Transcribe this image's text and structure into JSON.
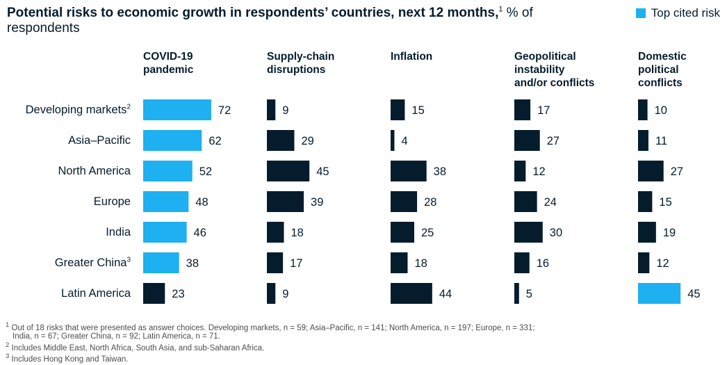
{
  "title": {
    "bold": "Potential risks to economic growth in respondents’ countries, next 12 months,",
    "bold_sup": "1",
    "light": " % of respondents"
  },
  "legend": {
    "label": "Top cited risk",
    "color": "#1eb0f0"
  },
  "colors": {
    "highlight": "#1eb0f0",
    "default": "#051c2c"
  },
  "chart_data": {
    "type": "bar",
    "orientation": "horizontal",
    "categories": [
      "Developing markets",
      "Asia–Pacific",
      "North America",
      "Europe",
      "India",
      "Greater China",
      "Latin America"
    ],
    "category_sups": [
      "2",
      "",
      "",
      "",
      "",
      "3",
      ""
    ],
    "series": [
      {
        "name": "COVID-19 pandemic",
        "values": [
          72,
          62,
          52,
          48,
          46,
          38,
          23
        ],
        "top_cited": [
          true,
          true,
          true,
          true,
          true,
          true,
          false
        ]
      },
      {
        "name": "Supply-chain disruptions",
        "values": [
          9,
          29,
          45,
          39,
          18,
          17,
          9
        ],
        "top_cited": [
          false,
          false,
          false,
          false,
          false,
          false,
          false
        ]
      },
      {
        "name": "Inflation",
        "values": [
          15,
          4,
          38,
          28,
          25,
          18,
          44
        ],
        "top_cited": [
          false,
          false,
          false,
          false,
          false,
          false,
          false
        ]
      },
      {
        "name": "Geopolitical instability and/or conflicts",
        "values": [
          17,
          27,
          12,
          24,
          30,
          16,
          5
        ],
        "top_cited": [
          false,
          false,
          false,
          false,
          false,
          false,
          false
        ]
      },
      {
        "name": "Domestic political conflicts",
        "values": [
          10,
          11,
          27,
          15,
          19,
          12,
          45
        ],
        "top_cited": [
          false,
          false,
          false,
          false,
          false,
          false,
          true
        ]
      }
    ],
    "column_headers": [
      [
        "COVID-19",
        "pandemic"
      ],
      [
        "Supply-chain",
        "disruptions"
      ],
      [
        "Inflation"
      ],
      [
        "Geopolitical",
        "instability",
        "and/or conflicts"
      ],
      [
        "Domestic",
        "political",
        "conflicts"
      ]
    ],
    "legend_position": "top-right",
    "grid": false
  },
  "footnotes": [
    {
      "sup": "1",
      "text": " Out of 18 risks that were presented as answer choices. Developing markets, n = 59; Asia–Pacific, n = 141; North America, n = 197; Europe, n = 331;"
    },
    {
      "sup": "",
      "text": "India, n = 67; Greater China, n = 92; Latin America, n = 71."
    },
    {
      "sup": "2",
      "text": " Includes Middle East, North Africa, South Asia, and sub-Saharan Africa."
    },
    {
      "sup": "3",
      "text": " Includes Hong Kong and Taiwan."
    }
  ]
}
